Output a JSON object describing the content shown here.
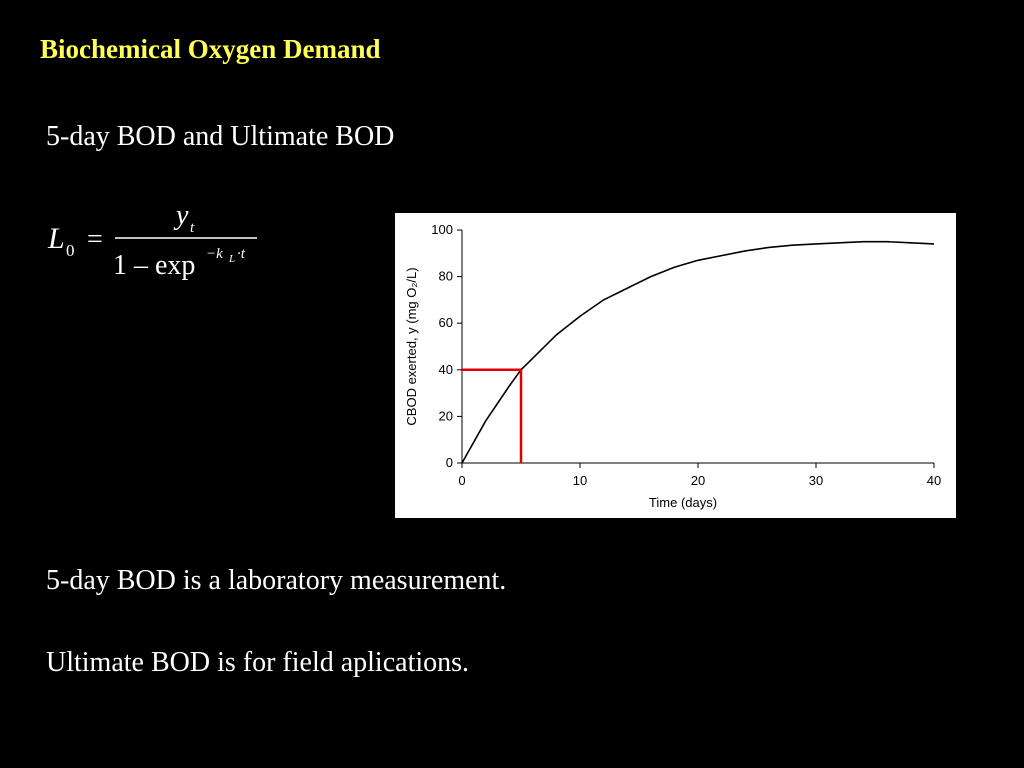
{
  "title": "Biochemical Oxygen Demand",
  "subtitle": "5-day BOD and Ultimate BOD",
  "equation": {
    "lhs": "L",
    "lhs_sub": "0",
    "equals": "=",
    "numerator": "y",
    "numerator_sub": "t",
    "denominator": "1 – exp",
    "exponent": "−k",
    "exponent_sub": "L",
    "exponent_rest": "·t"
  },
  "notes": [
    "5-day BOD is a laboratory measurement.",
    "Ultimate BOD is for field aplications."
  ],
  "chart_data": {
    "type": "line",
    "xlabel": "Time (days)",
    "ylabel": "CBOD exerted, y (mg O₂/L)",
    "x": [
      0,
      2,
      4,
      5,
      6,
      8,
      10,
      12,
      14,
      16,
      18,
      20,
      22,
      24,
      26,
      28,
      30,
      32,
      34,
      36,
      38,
      40
    ],
    "series": [
      {
        "color": "#000000",
        "values": [
          0,
          18,
          33,
          40,
          45,
          55,
          63,
          70,
          75,
          80,
          84,
          87,
          89,
          91,
          92.5,
          93.5,
          94,
          94.5,
          95,
          95,
          94.5,
          94
        ]
      }
    ],
    "xlim": [
      0,
      40
    ],
    "ylim": [
      0,
      100
    ],
    "xticks": [
      0,
      10,
      20,
      30,
      40
    ],
    "yticks": [
      0,
      20,
      40,
      60,
      80,
      100
    ],
    "markers": {
      "x": 5,
      "y": 40,
      "color": "#e00000"
    }
  }
}
